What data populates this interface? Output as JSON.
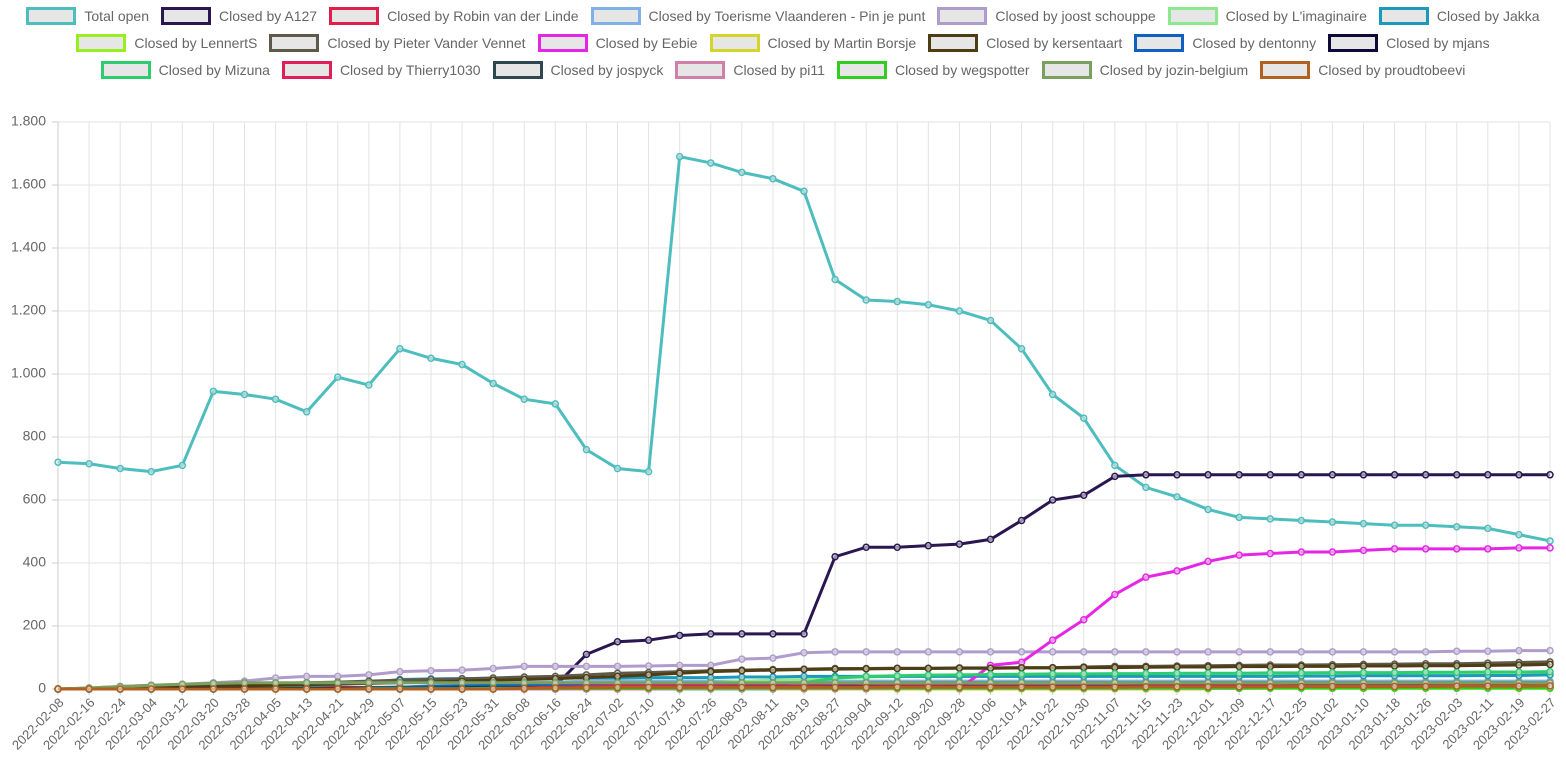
{
  "chart_data": {
    "type": "line",
    "x": [
      "2022-02-08",
      "2022-02-16",
      "2022-02-24",
      "2022-03-04",
      "2022-03-12",
      "2022-03-20",
      "2022-03-28",
      "2022-04-05",
      "2022-04-13",
      "2022-04-21",
      "2022-04-29",
      "2022-05-07",
      "2022-05-15",
      "2022-05-23",
      "2022-05-31",
      "2022-06-08",
      "2022-06-16",
      "2022-06-24",
      "2022-07-02",
      "2022-07-10",
      "2022-07-18",
      "2022-07-26",
      "2022-08-03",
      "2022-08-11",
      "2022-08-19",
      "2022-08-27",
      "2022-09-04",
      "2022-09-12",
      "2022-09-20",
      "2022-09-28",
      "2022-10-06",
      "2022-10-14",
      "2022-10-22",
      "2022-10-30",
      "2022-11-07",
      "2022-11-15",
      "2022-11-23",
      "2022-12-01",
      "2022-12-09",
      "2022-12-17",
      "2022-12-25",
      "2023-01-02",
      "2023-01-10",
      "2023-01-18",
      "2023-01-26",
      "2023-02-03",
      "2023-02-11",
      "2023-02-19",
      "2023-02-27"
    ],
    "ylim": [
      0,
      1800
    ],
    "yticks": [
      0,
      200,
      400,
      600,
      800,
      {
        "value": 1000,
        "label": "1.000"
      },
      {
        "value": 1200,
        "label": "1.200"
      },
      {
        "value": 1400,
        "label": "1.400"
      },
      {
        "value": 1600,
        "label": "1.600"
      },
      {
        "value": 1800,
        "label": "1.800"
      }
    ],
    "grid": true,
    "legend": "top",
    "series": [
      {
        "name": "Total open",
        "color": "#4dbdbd",
        "values": [
          720,
          715,
          700,
          690,
          710,
          945,
          935,
          920,
          880,
          990,
          965,
          1080,
          1050,
          1030,
          970,
          920,
          905,
          760,
          700,
          690,
          1690,
          1670,
          1640,
          1620,
          1580,
          1300,
          1235,
          1230,
          1220,
          1200,
          1170,
          1080,
          935,
          860,
          710,
          640,
          610,
          570,
          545,
          540,
          535,
          530,
          525,
          520,
          520,
          515,
          510,
          490,
          470
        ]
      },
      {
        "name": "Closed by A127",
        "color": "#2a1752",
        "values": [
          0,
          0,
          0,
          0,
          0,
          0,
          0,
          0,
          0,
          0,
          0,
          0,
          0,
          0,
          0,
          0,
          10,
          110,
          150,
          155,
          170,
          175,
          175,
          175,
          175,
          420,
          450,
          450,
          455,
          460,
          475,
          535,
          600,
          615,
          675,
          680,
          680,
          680,
          680,
          680,
          680,
          680,
          680,
          680,
          680,
          680,
          680,
          680,
          680
        ]
      },
      {
        "name": "Closed by Robin van der Linde",
        "color": "#e0204a",
        "values": [
          0,
          1,
          1,
          2,
          2,
          3,
          3,
          4,
          4,
          5,
          5,
          5,
          6,
          6,
          6,
          7,
          8,
          10,
          10,
          10,
          10,
          10,
          10,
          10,
          10,
          10,
          10,
          10,
          10,
          10,
          10,
          10,
          10,
          10,
          10,
          11,
          11,
          12,
          14,
          14,
          14,
          14,
          14,
          14,
          15,
          15,
          15,
          15,
          15
        ]
      },
      {
        "name": "Closed by Toerisme Vlaanderen - Pin je punt",
        "color": "#80b0e8",
        "values": [
          0,
          0,
          0,
          0,
          0,
          0,
          0,
          0,
          0,
          0,
          0,
          5,
          10,
          15,
          18,
          20,
          22,
          25,
          25,
          25,
          25,
          25,
          25,
          25,
          25,
          25,
          25,
          25,
          25,
          25,
          25,
          25,
          25,
          25,
          25,
          25,
          25,
          25,
          25,
          25,
          25,
          25,
          25,
          25,
          25,
          25,
          25,
          25,
          25
        ]
      },
      {
        "name": "Closed by joost schouppe",
        "color": "#b09ccc",
        "values": [
          0,
          3,
          8,
          12,
          15,
          20,
          25,
          35,
          40,
          40,
          45,
          55,
          58,
          60,
          65,
          72,
          72,
          72,
          72,
          73,
          75,
          75,
          95,
          98,
          115,
          118,
          118,
          118,
          118,
          118,
          118,
          118,
          118,
          118,
          118,
          118,
          118,
          118,
          118,
          118,
          118,
          118,
          118,
          118,
          118,
          120,
          120,
          122,
          122
        ]
      },
      {
        "name": "Closed by L'imaginaire",
        "color": "#8ee88e",
        "values": [
          0,
          0,
          0,
          0,
          0,
          0,
          0,
          0,
          0,
          0,
          0,
          0,
          0,
          0,
          0,
          0,
          0,
          0,
          5,
          10,
          15,
          20,
          25,
          28,
          30,
          35,
          38,
          40,
          40,
          42,
          42,
          44,
          45,
          45,
          46,
          46,
          47,
          47,
          48,
          48,
          48,
          49,
          49,
          50,
          50,
          50,
          50,
          52,
          52
        ]
      },
      {
        "name": "Closed by Jakka",
        "color": "#1a9ab8",
        "values": [
          0,
          0,
          0,
          0,
          0,
          0,
          0,
          5,
          10,
          15,
          20,
          30,
          32,
          33,
          34,
          35,
          35,
          35,
          35,
          36,
          36,
          36,
          38,
          38,
          40,
          40,
          40,
          40,
          40,
          40,
          40,
          40,
          40,
          40,
          40,
          40,
          40,
          40,
          40,
          40,
          41,
          41,
          42,
          42,
          42,
          42,
          43,
          43,
          45
        ]
      },
      {
        "name": "Closed by LennertS",
        "color": "#99ee22",
        "values": [
          0,
          1,
          1,
          1,
          1,
          1,
          2,
          2,
          2,
          2,
          2,
          2,
          2,
          2,
          2,
          2,
          2,
          2,
          2,
          2,
          2,
          2,
          2,
          2,
          2,
          2,
          2,
          2,
          2,
          2,
          2,
          2,
          2,
          2,
          2,
          2,
          2,
          2,
          2,
          2,
          2,
          2,
          2,
          2,
          2,
          2,
          2,
          2,
          2
        ]
      },
      {
        "name": "Closed by Pieter Vander Vennet",
        "color": "#5e5a4a",
        "values": [
          0,
          2,
          5,
          8,
          10,
          12,
          15,
          18,
          20,
          22,
          25,
          28,
          30,
          32,
          35,
          38,
          40,
          45,
          50,
          52,
          55,
          58,
          60,
          62,
          63,
          65,
          65,
          66,
          66,
          67,
          67,
          68,
          68,
          70,
          72,
          72,
          73,
          74,
          75,
          76,
          76,
          77,
          78,
          79,
          80,
          80,
          82,
          84,
          86
        ]
      },
      {
        "name": "Closed by Eebie",
        "color": "#e626e6",
        "values": [
          0,
          0,
          0,
          0,
          0,
          0,
          0,
          0,
          0,
          0,
          0,
          0,
          0,
          0,
          0,
          0,
          0,
          0,
          0,
          0,
          0,
          0,
          0,
          0,
          0,
          0,
          0,
          0,
          0,
          0,
          75,
          85,
          155,
          220,
          300,
          355,
          375,
          405,
          425,
          430,
          435,
          435,
          440,
          445,
          445,
          445,
          445,
          448,
          448
        ]
      },
      {
        "name": "Closed by Martin Borsje",
        "color": "#d4d42a",
        "values": [
          0,
          0,
          0,
          0,
          0,
          0,
          0,
          0,
          0,
          0,
          0,
          0,
          0,
          0,
          0,
          0,
          0,
          0,
          0,
          0,
          0,
          0,
          0,
          0,
          0,
          0,
          0,
          0,
          0,
          0,
          0,
          0,
          0,
          0,
          0,
          0,
          0,
          0,
          10,
          10,
          10,
          10,
          10,
          10,
          10,
          10,
          10,
          10,
          10
        ]
      },
      {
        "name": "Closed by kersentaart",
        "color": "#4e3d12",
        "values": [
          0,
          0,
          2,
          4,
          6,
          8,
          10,
          12,
          14,
          16,
          18,
          20,
          22,
          25,
          28,
          30,
          33,
          36,
          40,
          45,
          50,
          55,
          58,
          60,
          62,
          63,
          64,
          65,
          65,
          66,
          66,
          67,
          67,
          68,
          68,
          69,
          70,
          70,
          71,
          71,
          72,
          72,
          73,
          73,
          74,
          74,
          75,
          76,
          78
        ]
      },
      {
        "name": "Closed by dentonny",
        "color": "#1060c0",
        "values": [
          0,
          0,
          0,
          0,
          0,
          0,
          0,
          0,
          0,
          2,
          4,
          6,
          8,
          10,
          12,
          14,
          15,
          16,
          17,
          18,
          18,
          18,
          18,
          18,
          18,
          18,
          20,
          20,
          20,
          20,
          20,
          20,
          20,
          20,
          20,
          20,
          20,
          20,
          20,
          20,
          20,
          20,
          20,
          20,
          20,
          20,
          20,
          20,
          20
        ]
      },
      {
        "name": "Closed by mjans",
        "color": "#0d0a3a",
        "values": [
          0,
          0,
          0,
          0,
          1,
          1,
          1,
          1,
          2,
          2,
          2,
          2,
          2,
          3,
          3,
          3,
          3,
          3,
          3,
          4,
          4,
          4,
          4,
          4,
          4,
          5,
          5,
          5,
          5,
          5,
          5,
          5,
          5,
          5,
          5,
          5,
          5,
          5,
          5,
          5,
          5,
          5,
          5,
          5,
          5,
          5,
          5,
          5,
          5
        ]
      },
      {
        "name": "Closed by Mizuna",
        "color": "#2ecc71",
        "values": [
          0,
          0,
          0,
          0,
          0,
          0,
          0,
          0,
          0,
          0,
          0,
          0,
          0,
          0,
          0,
          0,
          0,
          0,
          0,
          0,
          0,
          0,
          0,
          0,
          20,
          35,
          40,
          42,
          44,
          45,
          46,
          47,
          48,
          48,
          49,
          49,
          50,
          50,
          50,
          51,
          51,
          52,
          52,
          52,
          53,
          53,
          54,
          54,
          55
        ]
      },
      {
        "name": "Closed by Thierry1030",
        "color": "#e01e5a",
        "values": [
          0,
          0,
          0,
          0,
          0,
          0,
          0,
          0,
          0,
          0,
          0,
          0,
          0,
          0,
          0,
          0,
          5,
          8,
          10,
          10,
          10,
          10,
          10,
          10,
          10,
          10,
          10,
          10,
          10,
          10,
          10,
          10,
          10,
          10,
          10,
          10,
          10,
          10,
          15,
          18,
          18,
          18,
          18,
          18,
          18,
          18,
          18,
          18,
          18
        ]
      },
      {
        "name": "Closed by jospyck",
        "color": "#2e4650",
        "values": [
          0,
          0,
          0,
          0,
          0,
          0,
          0,
          0,
          0,
          0,
          0,
          0,
          0,
          0,
          0,
          0,
          0,
          2,
          3,
          4,
          5,
          5,
          6,
          6,
          6,
          7,
          7,
          7,
          7,
          8,
          8,
          8,
          8,
          8,
          8,
          8,
          8,
          8,
          8,
          8,
          9,
          9,
          9,
          9,
          9,
          9,
          10,
          10,
          10
        ]
      },
      {
        "name": "Closed by pi11",
        "color": "#d080a8",
        "values": [
          0,
          0,
          0,
          0,
          0,
          0,
          0,
          0,
          0,
          0,
          0,
          0,
          0,
          0,
          0,
          0,
          0,
          0,
          0,
          0,
          1,
          1,
          1,
          1,
          1,
          1,
          1,
          2,
          2,
          2,
          2,
          2,
          2,
          2,
          2,
          2,
          2,
          2,
          2,
          3,
          3,
          3,
          3,
          3,
          3,
          3,
          3,
          3,
          3
        ]
      },
      {
        "name": "Closed by wegspotter",
        "color": "#33cc22",
        "values": [
          0,
          0,
          0,
          0,
          0,
          0,
          0,
          0,
          0,
          0,
          1,
          1,
          1,
          1,
          2,
          2,
          2,
          2,
          2,
          2,
          3,
          3,
          3,
          3,
          3,
          3,
          3,
          3,
          3,
          3,
          3,
          3,
          3,
          3,
          3,
          3,
          3,
          3,
          3,
          3,
          3,
          3,
          3,
          3,
          3,
          3,
          3,
          3,
          3
        ]
      },
      {
        "name": "Closed by jozin-belgium",
        "color": "#7aa060",
        "values": [
          0,
          3,
          8,
          12,
          15,
          18,
          20,
          20,
          20,
          20,
          20,
          20,
          20,
          20,
          20,
          20,
          20,
          20,
          20,
          20,
          20,
          20,
          20,
          20,
          20,
          20,
          20,
          20,
          20,
          20,
          20,
          20,
          20,
          20,
          20,
          20,
          20,
          20,
          20,
          20,
          20,
          20,
          20,
          20,
          20,
          20,
          20,
          20,
          20
        ]
      },
      {
        "name": "Closed by proudtobeevi",
        "color": "#b06020",
        "values": [
          0,
          0,
          0,
          0,
          0,
          0,
          0,
          0,
          0,
          0,
          0,
          0,
          0,
          0,
          0,
          2,
          3,
          4,
          5,
          5,
          5,
          5,
          5,
          5,
          5,
          5,
          5,
          6,
          6,
          6,
          6,
          6,
          6,
          6,
          6,
          7,
          7,
          7,
          7,
          7,
          8,
          8,
          8,
          8,
          8,
          9,
          9,
          9,
          10
        ]
      }
    ]
  }
}
